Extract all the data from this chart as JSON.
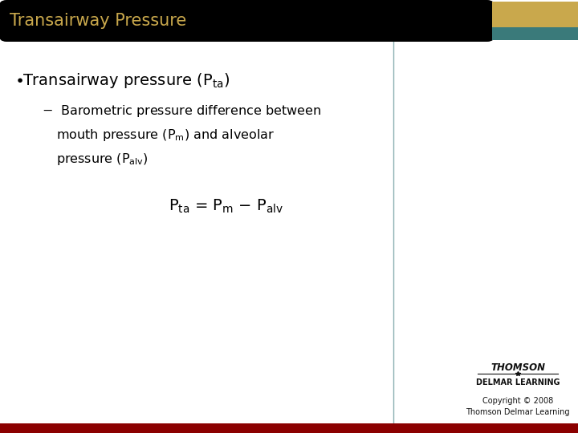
{
  "title": "Transairway Pressure",
  "title_color": "#C9A84C",
  "title_bg_color": "#000000",
  "title_bar_gold": "#C9A84C",
  "title_bar_teal": "#3A7A7A",
  "bg_color": "#FFFFFF",
  "text_color": "#000000",
  "vertical_line_color": "#8AAFB2",
  "bottom_bar_color": "#8B0000",
  "copyright_text": "Copyright © 2008\nThomson Delmar Learning",
  "thomson_text": "THOMSON",
  "delmar_text": "DELMAR LEARNING"
}
